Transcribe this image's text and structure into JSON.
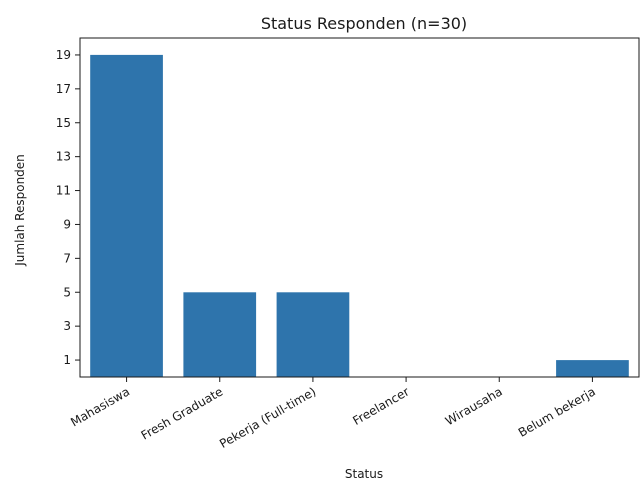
{
  "chart_data": {
    "type": "bar",
    "title": "Status Responden (n=30)",
    "xlabel": "Status",
    "ylabel": "Jumlah Responden",
    "categories": [
      "Mahasiswa",
      "Fresh Graduate",
      "Pekerja (Full-time)",
      "Freelancer",
      "Wirausaha",
      "Belum bekerja"
    ],
    "values": [
      19,
      5,
      5,
      0,
      0,
      1
    ],
    "yticks": [
      1,
      3,
      5,
      7,
      9,
      11,
      13,
      15,
      17,
      19
    ],
    "ylim": [
      0,
      20
    ],
    "grid": false,
    "bar_color": "#2e74ac"
  }
}
